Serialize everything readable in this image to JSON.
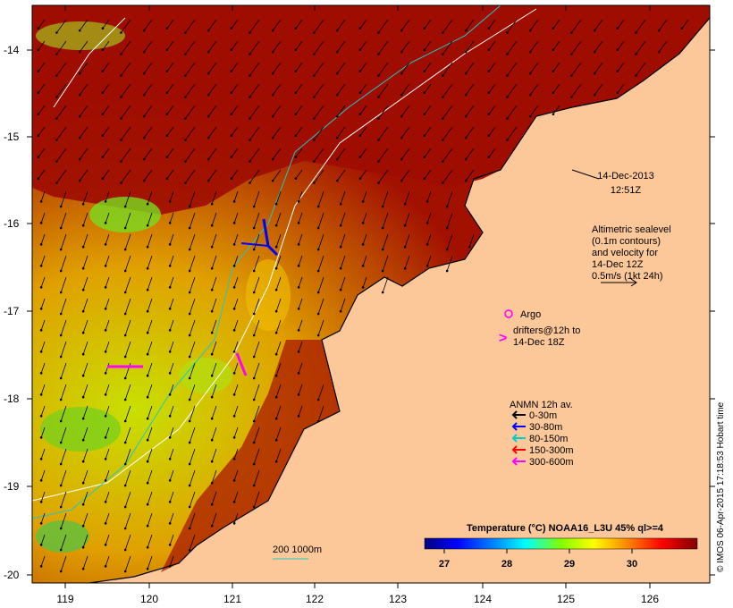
{
  "map": {
    "date": "14-Dec-2013",
    "time": "12:51Z",
    "lon_ticks": [
      "119",
      "120",
      "121",
      "122",
      "123",
      "124",
      "125",
      "126"
    ],
    "lat_ticks": [
      "-14",
      "-15",
      "-16",
      "-17",
      "-18",
      "-19",
      "-20"
    ],
    "altimetry_note": [
      "Altimetric sealevel",
      "(0.1m contours)",
      "and velocity for",
      "14-Dec 12Z",
      "0.5m/s (1kt 24h)"
    ],
    "argo_label": "Argo",
    "drifters_note": [
      "drifters@12h to",
      "14-Dec 18Z"
    ],
    "anmn_title": "ANMN 12h av.",
    "anmn_legend": [
      {
        "label": "0-30m",
        "color": "#000000"
      },
      {
        "label": "30-80m",
        "color": "#0000ff"
      },
      {
        "label": "80-150m",
        "color": "#00cccc"
      },
      {
        "label": "150-300m",
        "color": "#ff0000"
      },
      {
        "label": "300-600m",
        "color": "#ff00ff"
      }
    ],
    "isobath_label": "200  1000m",
    "colorbar_title": "Temperature (°C) NOAA16_L3U 45% ql>=4",
    "colorbar_ticks": [
      "27",
      "28",
      "29",
      "30"
    ],
    "credit": "© IMOS 06-Apr-2015 17:18:53 Hobart time",
    "colors": {
      "land": "#fcc89a",
      "ocean_warm": "#9c0d00",
      "colorbar": [
        "#000080",
        "#0000ff",
        "#00aaff",
        "#00ffaa",
        "#aaff00",
        "#ffff00",
        "#ffaa00",
        "#ff5500",
        "#aa0000",
        "#800000"
      ]
    }
  }
}
